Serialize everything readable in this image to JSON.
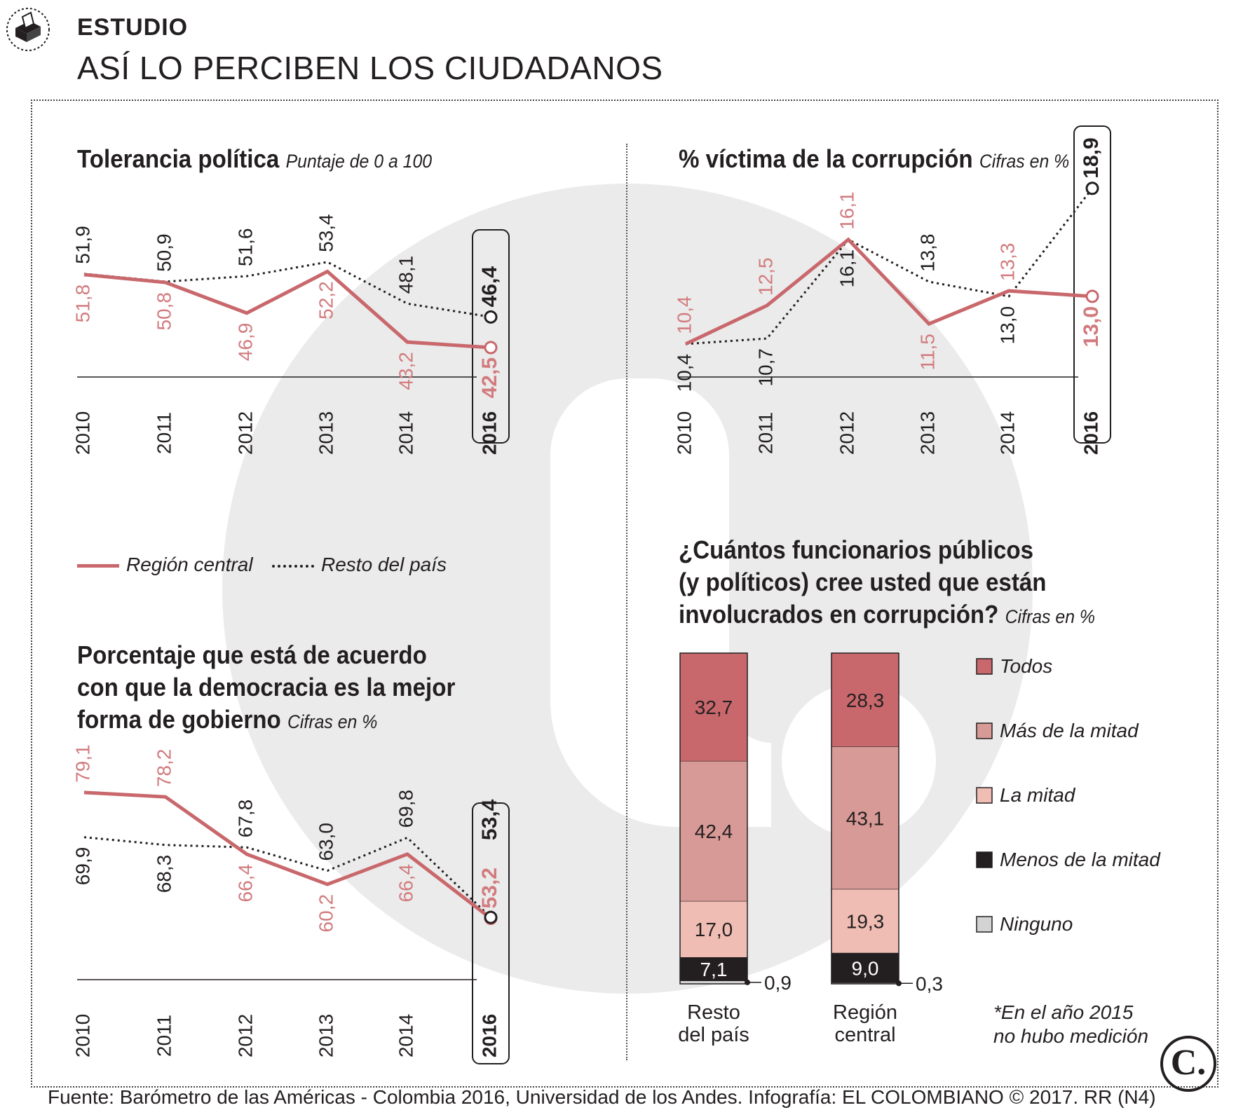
{
  "header": {
    "kicker": "ESTUDIO",
    "headline": "ASÍ LO PERCIBEN LOS CIUDADANOS"
  },
  "colors": {
    "region": "#c9686c",
    "region_text": "#d27b7e",
    "resto": "#231f20",
    "watermark": "#ebebeb"
  },
  "legend": {
    "region": "Región central",
    "resto": "Resto del país"
  },
  "chart_data": [
    {
      "type": "line",
      "title": "Tolerancia política",
      "subtitle": "Puntaje de 0 a 100",
      "categories": [
        "2010",
        "2011",
        "2012",
        "2013",
        "2014",
        "2016"
      ],
      "ylim": [
        35,
        60
      ],
      "series": [
        {
          "name": "Región central",
          "values": [
            51.8,
            50.8,
            46.9,
            52.2,
            43.2,
            42.5
          ],
          "labels": [
            "51,8",
            "50,8",
            "46,9",
            "52,2",
            "43,2",
            "42,5"
          ]
        },
        {
          "name": "Resto del país",
          "values": [
            51.9,
            50.9,
            51.6,
            53.4,
            48.1,
            46.4
          ],
          "labels": [
            "51,9",
            "50,9",
            "51,6",
            "53,4",
            "48,1",
            "46,4"
          ]
        }
      ]
    },
    {
      "type": "line",
      "title": "% víctima de la corrupción",
      "subtitle": "Cifras en %",
      "categories": [
        "2010",
        "2011",
        "2012",
        "2013",
        "2014",
        "2016"
      ],
      "ylim": [
        5,
        20
      ],
      "series": [
        {
          "name": "Región central",
          "values": [
            10.4,
            12.5,
            16.1,
            11.5,
            13.3,
            13.0
          ],
          "labels": [
            "10,4",
            "12,5",
            "16,1",
            "11,5",
            "13,3",
            "13,0"
          ]
        },
        {
          "name": "Resto del país",
          "values": [
            10.4,
            10.7,
            16.1,
            13.8,
            13.0,
            18.9
          ],
          "labels": [
            "10,4",
            "10,7",
            "16,1",
            "13,8",
            "13,0",
            "18,9"
          ]
        }
      ]
    },
    {
      "type": "line",
      "title": "Porcentaje que está de acuerdo con que la democracia es la mejor forma de gobierno",
      "title_lines": [
        "Porcentaje que está de acuerdo",
        "con que la democracia es la mejor",
        "forma de gobierno"
      ],
      "subtitle": "Cifras en %",
      "categories": [
        "2010",
        "2011",
        "2012",
        "2013",
        "2014",
        "2016"
      ],
      "ylim": [
        40,
        85
      ],
      "series": [
        {
          "name": "Región central",
          "values": [
            79.1,
            78.2,
            66.4,
            60.2,
            66.4,
            53.2
          ],
          "labels": [
            "79,1",
            "78,2",
            "66,4",
            "60,2",
            "66,4",
            "53,2"
          ]
        },
        {
          "name": "Resto del país",
          "values": [
            69.9,
            68.3,
            67.8,
            63.0,
            69.8,
            53.4
          ],
          "labels": [
            "69,9",
            "68,3",
            "67,8",
            "63,0",
            "69,8",
            "53,4"
          ]
        }
      ]
    },
    {
      "type": "bar",
      "stacked": true,
      "title": "¿Cuántos funcionarios públicos (y políticos) cree usted que están involucrados en corrupción?",
      "title_lines": [
        "¿Cuántos funcionarios públicos",
        "(y políticos) cree usted que están",
        "involucrados en corrupción?"
      ],
      "subtitle": "Cifras en %",
      "categories": [
        "Resto del país",
        "Región central"
      ],
      "category_lines": [
        [
          "Resto",
          "del país"
        ],
        [
          "Región",
          "central"
        ]
      ],
      "series": [
        {
          "name": "Todos",
          "color": "#c9686c",
          "values": [
            32.7,
            28.3
          ],
          "labels": [
            "32,7",
            "28,3"
          ]
        },
        {
          "name": "Más de la mitad",
          "color": "#d89a96",
          "values": [
            42.4,
            43.1
          ],
          "labels": [
            "42,4",
            "43,1"
          ]
        },
        {
          "name": "La mitad",
          "color": "#efbdb4",
          "values": [
            17.0,
            19.3
          ],
          "labels": [
            "17,0",
            "19,3"
          ]
        },
        {
          "name": "Menos de la mitad",
          "color": "#231f20",
          "values": [
            7.1,
            9.0
          ],
          "labels": [
            "7,1",
            "9,0"
          ]
        },
        {
          "name": "Ninguno",
          "color": "#d3d3d3",
          "values": [
            0.9,
            0.3
          ],
          "labels": [
            "0,9",
            "0,3"
          ]
        }
      ]
    }
  ],
  "note": [
    "*En el año 2015",
    "no hubo medición"
  ],
  "footer": "Fuente: Barómetro de las Américas - Colombia 2016, Universidad de los Andes. Infografía: EL COLOMBIANO © 2017. RR (N4)",
  "logo": "C."
}
